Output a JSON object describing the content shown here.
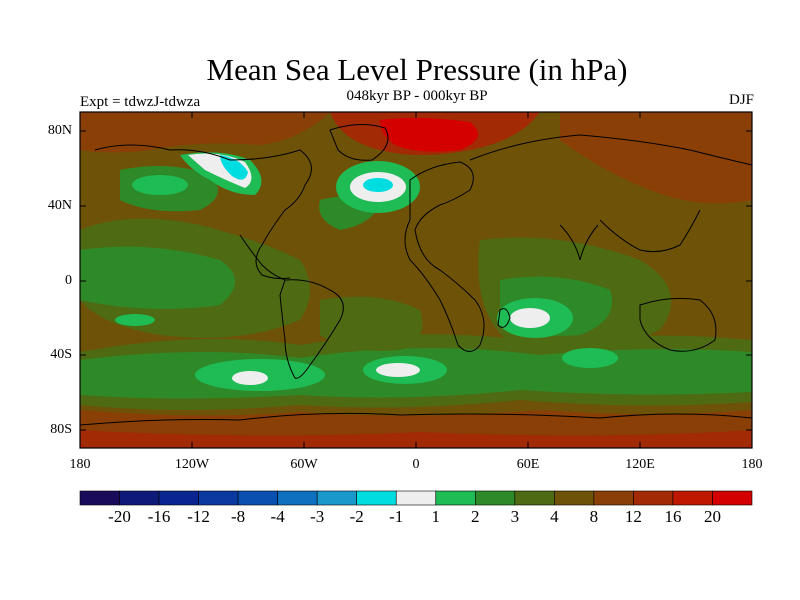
{
  "title": "Mean Sea Level Pressure (in hPa)",
  "subtitle": "048kyr BP - 000kyr BP",
  "experiment": "Expt = tdwzJ-tdwza",
  "season": "DJF",
  "map": {
    "lat_ticks": [
      "80N",
      "40N",
      "0",
      "40S",
      "80S"
    ],
    "lon_ticks": [
      "180",
      "120W",
      "60W",
      "0",
      "60E",
      "120E",
      "180"
    ]
  },
  "colorbar": {
    "labels": [
      "-20",
      "-16",
      "-12",
      "-8",
      "-4",
      "-3",
      "-2",
      "-1",
      "1",
      "2",
      "3",
      "4",
      "8",
      "12",
      "16",
      "20"
    ],
    "colors": [
      "#1a0a5a",
      "#0d1a78",
      "#0a2590",
      "#0a3aa0",
      "#0a50b0",
      "#0f70c0",
      "#1a98cc",
      "#00dde0",
      "#eeeeee",
      "#1fbb55",
      "#2e8a28",
      "#4e6a12",
      "#6e5208",
      "#8a3f06",
      "#a22a05",
      "#bf1800",
      "#d40000"
    ]
  },
  "legend_colors": {
    "base": "#6e5208",
    "green_dark": "#4e6a12",
    "green_mid": "#2e8a28",
    "green_light": "#1fbb55",
    "white": "#eeeeee",
    "cyan": "#00dde0",
    "rust": "#8a3f06",
    "red": "#bf1800",
    "deep_red": "#d40000"
  }
}
